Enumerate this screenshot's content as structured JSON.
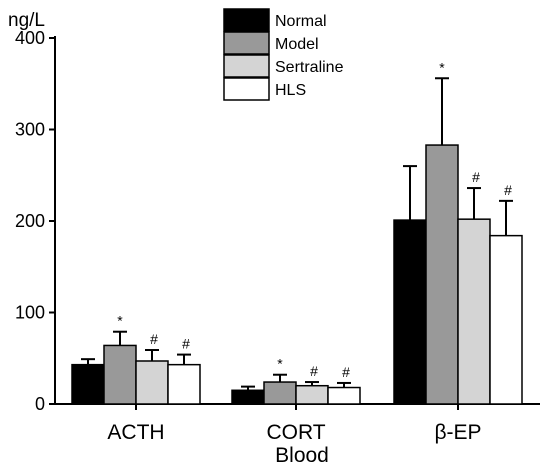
{
  "chart_data": {
    "type": "bar",
    "unit_label": "ng/L",
    "xlabel": "Blood",
    "ylabel": "",
    "ylim": [
      0,
      400
    ],
    "yticks": [
      0,
      100,
      200,
      300,
      400
    ],
    "categories": [
      "ACTH",
      "CORT",
      "β-EP"
    ],
    "legend_position": "top-center",
    "series": [
      {
        "name": "Normal",
        "color": "#000000",
        "values": [
          43,
          15,
          201
        ],
        "errors": [
          6,
          4,
          59
        ],
        "annotations": [
          "",
          "",
          ""
        ]
      },
      {
        "name": "Model",
        "color": "#999999",
        "values": [
          64,
          24,
          283
        ],
        "errors": [
          15,
          8,
          73
        ],
        "annotations": [
          "*",
          "*",
          "*"
        ]
      },
      {
        "name": "Sertraline",
        "color": "#d4d4d4",
        "values": [
          47,
          20,
          202
        ],
        "errors": [
          12,
          4,
          34
        ],
        "annotations": [
          "#",
          "#",
          "#"
        ]
      },
      {
        "name": "HLS",
        "color": "#ffffff",
        "values": [
          43,
          18,
          184
        ],
        "errors": [
          11,
          5,
          38
        ],
        "annotations": [
          "#",
          "#",
          "#"
        ]
      }
    ]
  }
}
